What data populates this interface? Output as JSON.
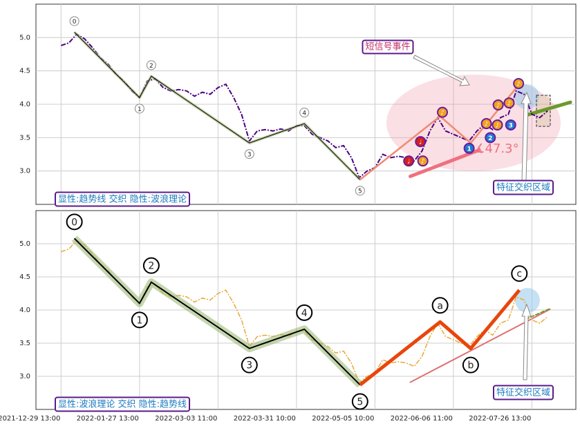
{
  "chart_data": [
    {
      "type": "line",
      "xlim": [
        -32,
        656
      ],
      "xticks": [
        0,
        100,
        200,
        300,
        400,
        500,
        600
      ],
      "ylim": [
        2.5,
        5.5
      ],
      "yticks": [
        {
          "value": 3.0,
          "label": "3.0"
        },
        {
          "value": 3.5,
          "label": "3.5"
        },
        {
          "value": 4.0,
          "label": "4.0"
        },
        {
          "value": 4.5,
          "label": "4.5"
        },
        {
          "value": 5.0,
          "label": "5.0"
        }
      ],
      "grid": true,
      "price": {
        "color": "#4b0082",
        "x": [
          0,
          10,
          20,
          30,
          40,
          50,
          60,
          70,
          80,
          90,
          100,
          110,
          120,
          130,
          140,
          150,
          160,
          170,
          180,
          190,
          200,
          210,
          220,
          230,
          240,
          250,
          260,
          270,
          280,
          290,
          300,
          310,
          320,
          330,
          340,
          350,
          360,
          370,
          380,
          390,
          400,
          410,
          420,
          430,
          440,
          450,
          460,
          470,
          480,
          490,
          500,
          510,
          520,
          530,
          540,
          550,
          560,
          570,
          580,
          590,
          600,
          610,
          620
        ],
        "values": [
          4.88,
          4.92,
          5.05,
          4.98,
          4.85,
          4.7,
          4.6,
          4.45,
          4.35,
          4.2,
          4.1,
          4.35,
          4.38,
          4.25,
          4.2,
          4.22,
          4.2,
          4.12,
          4.18,
          4.15,
          4.25,
          4.3,
          4.1,
          3.85,
          3.45,
          3.6,
          3.62,
          3.6,
          3.63,
          3.6,
          3.68,
          3.68,
          3.55,
          3.5,
          3.45,
          3.35,
          3.38,
          3.2,
          2.9,
          3.0,
          3.05,
          3.25,
          3.2,
          3.22,
          3.2,
          3.15,
          3.3,
          3.6,
          3.8,
          3.6,
          3.55,
          3.5,
          3.45,
          3.6,
          3.7,
          3.62,
          3.8,
          3.85,
          4.2,
          4.15,
          3.85,
          3.8,
          3.9
        ]
      },
      "wave": {
        "color": "#000000",
        "x": [
          17,
          100,
          115,
          240,
          310,
          381
        ],
        "values": [
          5.08,
          4.1,
          4.42,
          3.42,
          3.71,
          2.87
        ],
        "labels": [
          "0",
          "1",
          "2",
          "3",
          "4",
          "5"
        ]
      },
      "abc": {
        "color": "#f08a70",
        "x": [
          381,
          483,
          522,
          584
        ],
        "values": [
          2.87,
          3.82,
          3.42,
          4.3
        ],
        "labels": [
          null,
          null,
          null,
          null
        ]
      },
      "trendlines": [
        {
          "color": "#f07080",
          "x": [
            445,
            532
          ],
          "values": [
            2.92,
            3.31
          ]
        },
        {
          "color": "#6a9a2a",
          "x": [
            594,
            649
          ],
          "values": [
            3.84,
            4.03
          ]
        }
      ],
      "markers": [
        {
          "x": 443,
          "y": 3.15,
          "label": "♩",
          "color": "#d42020"
        },
        {
          "x": 458,
          "y": 3.44,
          "label": "♩",
          "color": "#d42020"
        },
        {
          "x": 461,
          "y": 3.15,
          "label": "♪",
          "color": "#f0a020"
        },
        {
          "x": 486,
          "y": 3.88,
          "label": "♪",
          "color": "#f0a020"
        },
        {
          "x": 542,
          "y": 3.71,
          "label": "♪",
          "color": "#f0a020"
        },
        {
          "x": 557,
          "y": 3.99,
          "label": "♪",
          "color": "#f0a020"
        },
        {
          "x": 571,
          "y": 4.02,
          "label": "♪",
          "color": "#f0a020"
        },
        {
          "x": 556,
          "y": 3.69,
          "label": "♪",
          "color": "#f0a020"
        },
        {
          "x": 583,
          "y": 4.31,
          "label": "♪",
          "color": "#f0a020"
        },
        {
          "x": 520,
          "y": 3.34,
          "label": "1",
          "color": "#1e7ad0"
        },
        {
          "x": 547,
          "y": 3.5,
          "label": "2",
          "color": "#1e7ad0"
        },
        {
          "x": 573,
          "y": 3.69,
          "label": "3",
          "color": "#1e7ad0"
        }
      ],
      "event_label": "短信号事件",
      "zone_label": "特征交织区域",
      "angle_label": "∡47.3°",
      "caption": "显性:趋势线 交织 隐性:波浪理论"
    },
    {
      "type": "line",
      "xlim": [
        -32,
        656
      ],
      "xticks": [
        {
          "value": 0,
          "label": "2021-12-29 13:00"
        },
        {
          "value": 100,
          "label": "2022-01-27 13:00"
        },
        {
          "value": 200,
          "label": "2022-03-03 11:00"
        },
        {
          "value": 300,
          "label": "2022-03-31 10:00"
        },
        {
          "value": 400,
          "label": "2022-05-05 10:00"
        },
        {
          "value": 500,
          "label": "2022-06-06 11:00"
        },
        {
          "value": 600,
          "label": "2022-07-26 13:00"
        }
      ],
      "ylim": [
        2.5,
        5.5
      ],
      "yticks": [
        {
          "value": 3.0,
          "label": "3.0"
        },
        {
          "value": 3.5,
          "label": "3.5"
        },
        {
          "value": 4.0,
          "label": "4.0"
        },
        {
          "value": 4.5,
          "label": "4.5"
        },
        {
          "value": 5.0,
          "label": "5.0"
        }
      ],
      "grid": true,
      "price": {
        "color": "#e8a838",
        "x": [
          0,
          10,
          20,
          30,
          40,
          50,
          60,
          70,
          80,
          90,
          100,
          110,
          120,
          130,
          140,
          150,
          160,
          170,
          180,
          190,
          200,
          210,
          220,
          230,
          240,
          250,
          260,
          270,
          280,
          290,
          300,
          310,
          320,
          330,
          340,
          350,
          360,
          370,
          380,
          390,
          400,
          410,
          420,
          430,
          440,
          450,
          460,
          470,
          480,
          490,
          500,
          510,
          520,
          530,
          540,
          550,
          560,
          570,
          580,
          590,
          600,
          610,
          620
        ],
        "values": [
          4.88,
          4.92,
          5.05,
          4.98,
          4.85,
          4.7,
          4.6,
          4.45,
          4.35,
          4.2,
          4.1,
          4.35,
          4.38,
          4.25,
          4.2,
          4.22,
          4.2,
          4.12,
          4.18,
          4.15,
          4.25,
          4.3,
          4.1,
          3.85,
          3.45,
          3.6,
          3.62,
          3.6,
          3.63,
          3.6,
          3.68,
          3.68,
          3.55,
          3.5,
          3.45,
          3.35,
          3.38,
          3.2,
          2.9,
          3.0,
          3.05,
          3.25,
          3.2,
          3.22,
          3.2,
          3.15,
          3.3,
          3.6,
          3.8,
          3.6,
          3.55,
          3.5,
          3.45,
          3.6,
          3.7,
          3.62,
          3.8,
          3.85,
          4.2,
          4.15,
          3.85,
          3.8,
          3.9
        ]
      },
      "wave": {
        "color": "#000000",
        "x": [
          17,
          100,
          115,
          240,
          310,
          381
        ],
        "values": [
          5.08,
          4.1,
          4.42,
          3.42,
          3.71,
          2.87
        ],
        "labels": [
          "0",
          "1",
          "2",
          "3",
          "4",
          "5"
        ]
      },
      "abc": {
        "color": "#e8460c",
        "x": [
          381,
          483,
          522,
          584
        ],
        "values": [
          2.87,
          3.82,
          3.42,
          4.3
        ],
        "labels": [
          null,
          "a",
          "b",
          "c"
        ]
      },
      "trendlines": [
        {
          "color": "#e07070",
          "x": [
            445,
            623
          ],
          "values": [
            2.91,
            4.01
          ]
        },
        {
          "color": "#6a9a2a",
          "x": [
            592,
            623
          ],
          "values": [
            3.86,
            4.02
          ],
          "dashed": true
        }
      ],
      "zone_label": "特征交织区域",
      "caption": "显性:波浪理论 交织 隐性:趋势线"
    }
  ]
}
